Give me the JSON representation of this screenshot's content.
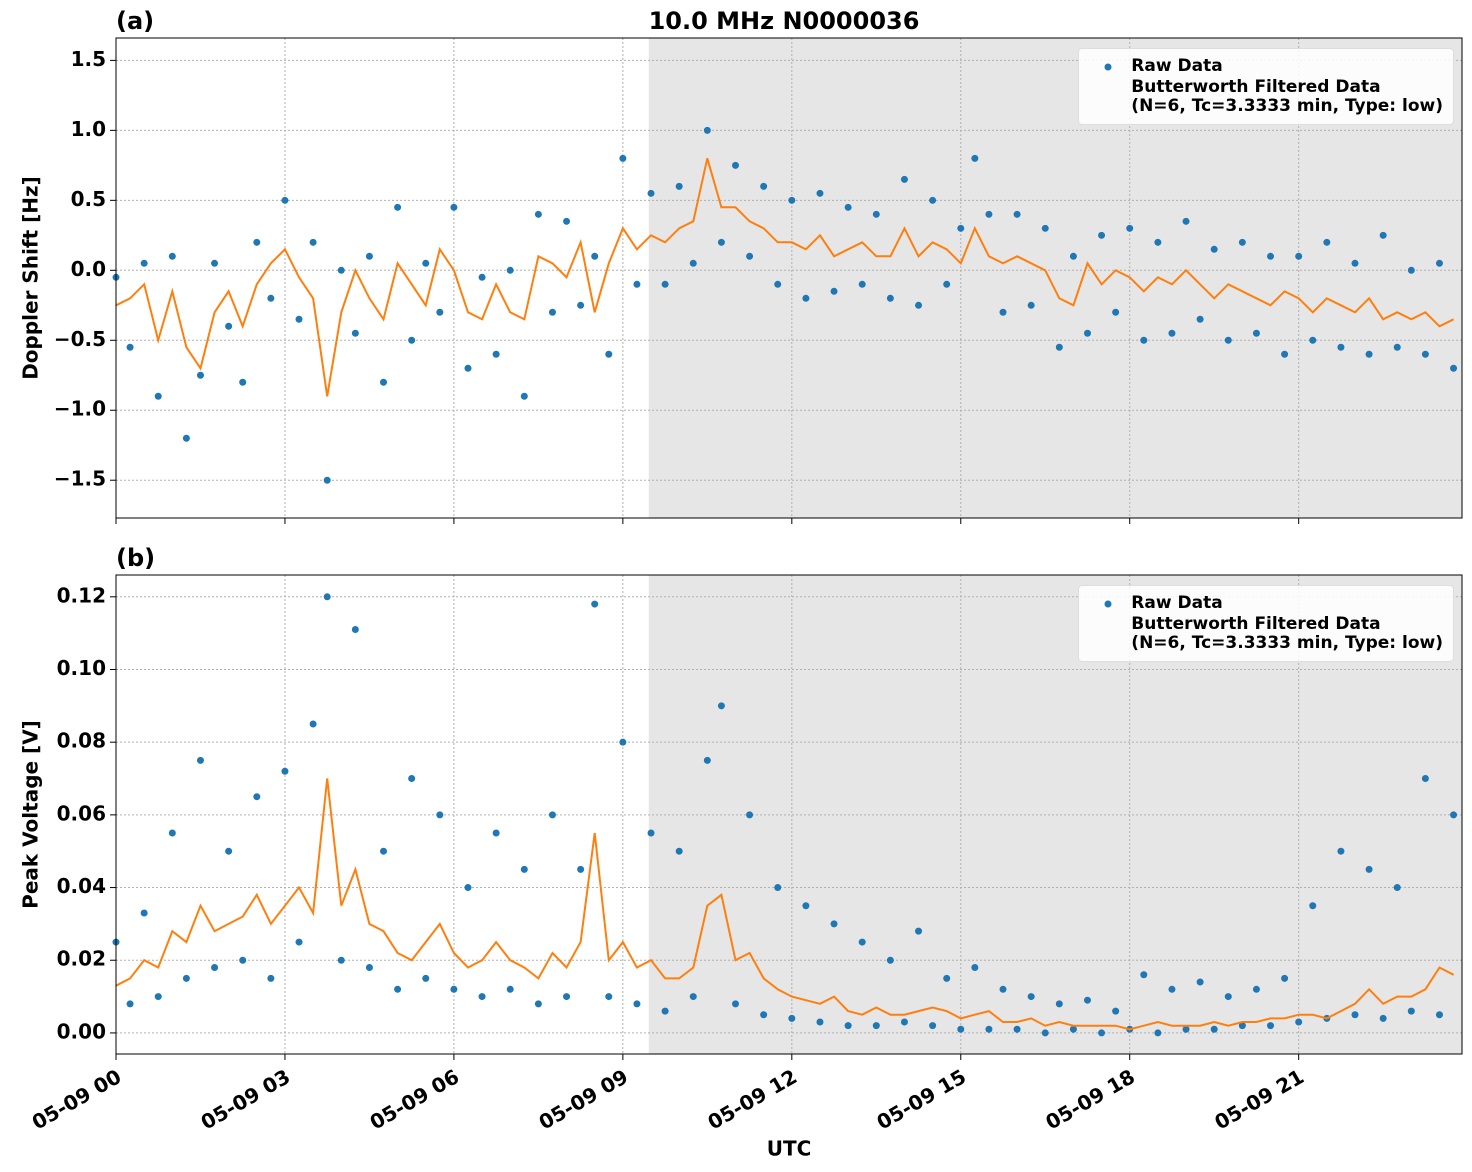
{
  "chart_data": [
    {
      "type": "line",
      "panel_label": "(a)",
      "title": "10.0 MHz N0000036",
      "ylabel": "Doppler Shift [Hz]",
      "x": [
        0,
        0.25,
        0.5,
        0.75,
        1,
        1.25,
        1.5,
        1.75,
        2,
        2.25,
        2.5,
        2.75,
        3,
        3.25,
        3.5,
        3.75,
        4,
        4.25,
        4.5,
        4.75,
        5,
        5.25,
        5.5,
        5.75,
        6,
        6.25,
        6.5,
        6.75,
        7,
        7.25,
        7.5,
        7.75,
        8,
        8.25,
        8.5,
        8.75,
        9,
        9.25,
        9.5,
        9.75,
        10,
        10.25,
        10.5,
        10.75,
        11,
        11.25,
        11.5,
        11.75,
        12,
        12.25,
        12.5,
        12.75,
        13,
        13.25,
        13.5,
        13.75,
        14,
        14.25,
        14.5,
        14.75,
        15,
        15.25,
        15.5,
        15.75,
        16,
        16.25,
        16.5,
        16.75,
        17,
        17.25,
        17.5,
        17.75,
        18,
        18.25,
        18.5,
        18.75,
        19,
        19.25,
        19.5,
        19.75,
        20,
        20.25,
        20.5,
        20.75,
        21,
        21.25,
        21.5,
        21.75,
        22,
        22.25,
        22.5,
        22.75,
        23,
        23.25,
        23.5,
        23.75
      ],
      "series": [
        {
          "name": "Raw Data",
          "style": "points",
          "color": "#1f77b4",
          "values": [
            -0.05,
            -0.55,
            0.05,
            -0.9,
            0.1,
            -1.2,
            -0.75,
            0.05,
            -0.4,
            -0.8,
            0.2,
            -0.2,
            0.5,
            -0.35,
            0.2,
            -1.5,
            0.0,
            -0.45,
            0.1,
            -0.8,
            0.45,
            -0.5,
            0.05,
            -0.3,
            0.45,
            -0.7,
            -0.05,
            -0.6,
            0.0,
            -0.9,
            0.4,
            -0.3,
            0.35,
            -0.25,
            0.1,
            -0.6,
            0.8,
            -0.1,
            0.55,
            -0.1,
            0.6,
            0.05,
            1.0,
            0.2,
            0.75,
            0.1,
            0.6,
            -0.1,
            0.5,
            -0.2,
            0.55,
            -0.15,
            0.45,
            -0.1,
            0.4,
            -0.2,
            0.65,
            -0.25,
            0.5,
            -0.1,
            0.3,
            0.8,
            0.4,
            -0.3,
            0.4,
            -0.25,
            0.3,
            -0.55,
            0.1,
            -0.45,
            0.25,
            -0.3,
            0.3,
            -0.5,
            0.2,
            -0.45,
            0.35,
            -0.35,
            0.15,
            -0.5,
            0.2,
            -0.45,
            0.1,
            -0.6,
            0.1,
            -0.5,
            0.2,
            -0.55,
            0.05,
            -0.6,
            0.25,
            -0.55,
            0.0,
            -0.6,
            0.05,
            -0.7
          ]
        },
        {
          "name": "Butterworth Filtered Data\n(N=6, Tc=3.3333 min, Type: low)",
          "style": "line",
          "color": "#ff7f0e",
          "values": [
            -0.25,
            -0.2,
            -0.1,
            -0.5,
            -0.15,
            -0.55,
            -0.7,
            -0.3,
            -0.15,
            -0.4,
            -0.1,
            0.05,
            0.15,
            -0.05,
            -0.2,
            -0.9,
            -0.3,
            0.0,
            -0.2,
            -0.35,
            0.05,
            -0.1,
            -0.25,
            0.15,
            0.0,
            -0.3,
            -0.35,
            -0.1,
            -0.3,
            -0.35,
            0.1,
            0.05,
            -0.05,
            0.2,
            -0.3,
            0.05,
            0.3,
            0.15,
            0.25,
            0.2,
            0.3,
            0.35,
            0.8,
            0.45,
            0.45,
            0.35,
            0.3,
            0.2,
            0.2,
            0.15,
            0.25,
            0.1,
            0.15,
            0.2,
            0.1,
            0.1,
            0.3,
            0.1,
            0.2,
            0.15,
            0.05,
            0.3,
            0.1,
            0.05,
            0.1,
            0.05,
            0.0,
            -0.2,
            -0.25,
            0.05,
            -0.1,
            0.0,
            -0.05,
            -0.15,
            -0.05,
            -0.1,
            0.0,
            -0.1,
            -0.2,
            -0.1,
            -0.15,
            -0.2,
            -0.25,
            -0.15,
            -0.2,
            -0.3,
            -0.2,
            -0.25,
            -0.3,
            -0.2,
            -0.35,
            -0.3,
            -0.35,
            -0.3,
            -0.4,
            -0.35
          ]
        }
      ],
      "xlim": [
        0,
        23.9
      ],
      "ylim": [
        -1.77,
        1.66
      ],
      "shade_xlim": [
        9.46,
        23.9
      ],
      "yticks": [
        {
          "value": -1.5,
          "label": "−1.5"
        },
        {
          "value": -1,
          "label": "−1.0"
        },
        {
          "value": -0.5,
          "label": "−0.5"
        },
        {
          "value": 0,
          "label": "0.0"
        },
        0.5,
        {
          "value": 1,
          "label": "1.0"
        },
        1.5
      ],
      "grid": true,
      "legend": "upper right"
    },
    {
      "type": "line",
      "panel_label": "(b)",
      "ylabel": "Peak Voltage [V]",
      "xlabel": "UTC",
      "x": [
        0,
        0.25,
        0.5,
        0.75,
        1,
        1.25,
        1.5,
        1.75,
        2,
        2.25,
        2.5,
        2.75,
        3,
        3.25,
        3.5,
        3.75,
        4,
        4.25,
        4.5,
        4.75,
        5,
        5.25,
        5.5,
        5.75,
        6,
        6.25,
        6.5,
        6.75,
        7,
        7.25,
        7.5,
        7.75,
        8,
        8.25,
        8.5,
        8.75,
        9,
        9.25,
        9.5,
        9.75,
        10,
        10.25,
        10.5,
        10.75,
        11,
        11.25,
        11.5,
        11.75,
        12,
        12.25,
        12.5,
        12.75,
        13,
        13.25,
        13.5,
        13.75,
        14,
        14.25,
        14.5,
        14.75,
        15,
        15.25,
        15.5,
        15.75,
        16,
        16.25,
        16.5,
        16.75,
        17,
        17.25,
        17.5,
        17.75,
        18,
        18.25,
        18.5,
        18.75,
        19,
        19.25,
        19.5,
        19.75,
        20,
        20.25,
        20.5,
        20.75,
        21,
        21.25,
        21.5,
        21.75,
        22,
        22.25,
        22.5,
        22.75,
        23,
        23.25,
        23.5,
        23.75
      ],
      "series": [
        {
          "name": "Raw Data",
          "style": "points",
          "color": "#1f77b4",
          "values": [
            0.025,
            0.008,
            0.033,
            0.01,
            0.055,
            0.015,
            0.075,
            0.018,
            0.05,
            0.02,
            0.065,
            0.015,
            0.072,
            0.025,
            0.085,
            0.12,
            0.02,
            0.111,
            0.018,
            0.05,
            0.012,
            0.07,
            0.015,
            0.06,
            0.012,
            0.04,
            0.01,
            0.055,
            0.012,
            0.045,
            0.008,
            0.06,
            0.01,
            0.045,
            0.118,
            0.01,
            0.08,
            0.008,
            0.055,
            0.006,
            0.05,
            0.01,
            0.075,
            0.09,
            0.008,
            0.06,
            0.005,
            0.04,
            0.004,
            0.035,
            0.003,
            0.03,
            0.002,
            0.025,
            0.002,
            0.02,
            0.003,
            0.028,
            0.002,
            0.015,
            0.001,
            0.018,
            0.001,
            0.012,
            0.001,
            0.01,
            0.0,
            0.008,
            0.001,
            0.009,
            0.0,
            0.006,
            0.001,
            0.016,
            0.0,
            0.012,
            0.001,
            0.014,
            0.001,
            0.01,
            0.002,
            0.012,
            0.002,
            0.015,
            0.003,
            0.035,
            0.004,
            0.05,
            0.005,
            0.045,
            0.004,
            0.04,
            0.006,
            0.07,
            0.005,
            0.06
          ]
        },
        {
          "name": "Butterworth Filtered Data\n(N=6, Tc=3.3333 min, Type: low)",
          "style": "line",
          "color": "#ff7f0e",
          "values": [
            0.013,
            0.015,
            0.02,
            0.018,
            0.028,
            0.025,
            0.035,
            0.028,
            0.03,
            0.032,
            0.038,
            0.03,
            0.035,
            0.04,
            0.033,
            0.07,
            0.035,
            0.045,
            0.03,
            0.028,
            0.022,
            0.02,
            0.025,
            0.03,
            0.022,
            0.018,
            0.02,
            0.025,
            0.02,
            0.018,
            0.015,
            0.022,
            0.018,
            0.025,
            0.055,
            0.02,
            0.025,
            0.018,
            0.02,
            0.015,
            0.015,
            0.018,
            0.035,
            0.038,
            0.02,
            0.022,
            0.015,
            0.012,
            0.01,
            0.009,
            0.008,
            0.01,
            0.006,
            0.005,
            0.007,
            0.005,
            0.005,
            0.006,
            0.007,
            0.006,
            0.004,
            0.005,
            0.006,
            0.003,
            0.003,
            0.004,
            0.002,
            0.003,
            0.002,
            0.002,
            0.002,
            0.002,
            0.001,
            0.002,
            0.003,
            0.002,
            0.002,
            0.002,
            0.003,
            0.002,
            0.003,
            0.003,
            0.004,
            0.004,
            0.005,
            0.005,
            0.004,
            0.006,
            0.008,
            0.012,
            0.008,
            0.01,
            0.01,
            0.012,
            0.018,
            0.016
          ]
        }
      ],
      "xlim": [
        0,
        23.9
      ],
      "ylim": [
        -0.0058,
        0.126
      ],
      "shade_xlim": [
        9.46,
        23.9
      ],
      "xticks": [
        {
          "value": 0,
          "label": "05-09 00"
        },
        {
          "value": 3,
          "label": "05-09 03"
        },
        {
          "value": 6,
          "label": "05-09 06"
        },
        {
          "value": 9,
          "label": "05-09 09"
        },
        {
          "value": 12,
          "label": "05-09 12"
        },
        {
          "value": 15,
          "label": "05-09 15"
        },
        {
          "value": 18,
          "label": "05-09 18"
        },
        {
          "value": 21,
          "label": "05-09 21"
        }
      ],
      "yticks": [
        {
          "value": 0,
          "label": "0.00"
        },
        {
          "value": 0.02,
          "label": "0.02"
        },
        {
          "value": 0.04,
          "label": "0.04"
        },
        {
          "value": 0.06,
          "label": "0.06"
        },
        {
          "value": 0.08,
          "label": "0.08"
        },
        {
          "value": 0.1,
          "label": "0.10"
        },
        {
          "value": 0.12,
          "label": "0.12"
        }
      ],
      "grid": true,
      "legend": "upper right"
    }
  ]
}
